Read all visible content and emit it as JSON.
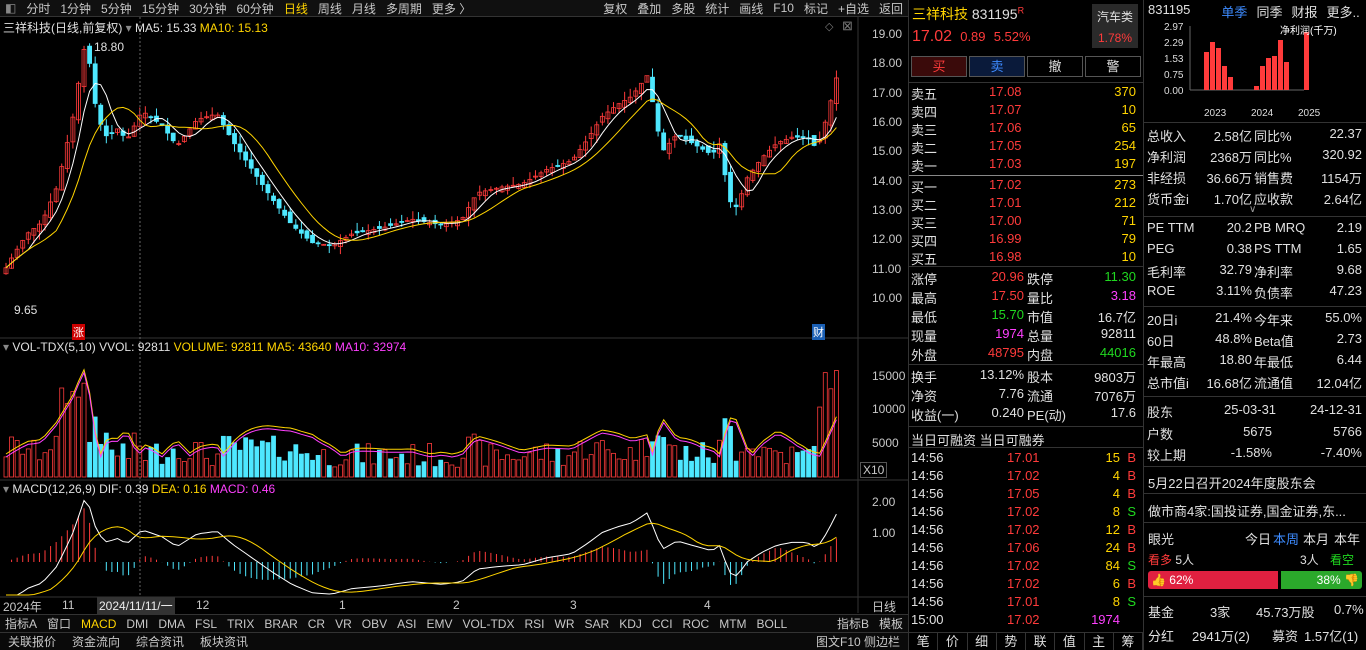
{
  "toolbar": {
    "left": [
      "分时",
      "1分钟",
      "5分钟",
      "15分钟",
      "30分钟",
      "60分钟",
      "日线",
      "周线",
      "月线",
      "多周期",
      "更多 〉"
    ],
    "right": [
      "复权",
      "叠加",
      "多股",
      "统计",
      "画线",
      "F10",
      "标记",
      "+自选",
      "返回"
    ]
  },
  "chart": {
    "title": "三祥科技(日线,前复权)",
    "ma5": "MA5: 15.33",
    "ma10": "MA10: 15.13",
    "high_label": "18.80",
    "low_label": "9.65",
    "zhang": "涨",
    "cai": "财",
    "yticks": [
      "19.00",
      "18.00",
      "17.00",
      "16.00",
      "15.00",
      "14.00",
      "13.00",
      "12.00",
      "11.00",
      "10.00"
    ]
  },
  "vol": {
    "title": "VOL-TDX(5,10)",
    "vvol": "VVOL: 92811",
    "volume": "VOLUME: 92811",
    "ma5": "MA5: 43640",
    "ma10": "MA10: 32974",
    "yticks": [
      "15000",
      "10000",
      "5000"
    ],
    "unit": "X10"
  },
  "macd": {
    "title": "MACD(12,26,9)",
    "dif": "DIF: 0.39",
    "dea": "DEA: 0.16",
    "macd": "MACD: 0.46",
    "yticks": [
      "2.00",
      "1.00"
    ]
  },
  "xaxis": {
    "labels": [
      "2024年",
      "11",
      "2024/11/11/一",
      "12",
      "1",
      "2",
      "3",
      "4"
    ],
    "period": "日线"
  },
  "indicators": [
    "指标A",
    "窗口",
    "MACD",
    "DMI",
    "DMA",
    "FSL",
    "TRIX",
    "BRAR",
    "CR",
    "VR",
    "OBV",
    "ASI",
    "EMV",
    "VOL-TDX",
    "RSI",
    "WR",
    "SAR",
    "KDJ",
    "CCI",
    "ROC",
    "MTM",
    "BOLL"
  ],
  "ind_right": [
    "指标B",
    "模板"
  ],
  "bottom": [
    "关联报价",
    "资金流向",
    "综合资讯",
    "板块资讯"
  ],
  "bottom_right": "图文F10 侧边栏",
  "quote": {
    "name": "三祥科技",
    "code": "831195",
    "r": "R",
    "price": "17.02",
    "change": "0.89",
    "pct": "5.52%",
    "sector": "汽车类",
    "sector_pct": "1.78%"
  },
  "actions": [
    "买",
    "卖",
    "撤",
    "警"
  ],
  "asks": [
    [
      "卖五",
      "17.08",
      "370"
    ],
    [
      "卖四",
      "17.07",
      "10"
    ],
    [
      "卖三",
      "17.06",
      "65"
    ],
    [
      "卖二",
      "17.05",
      "254"
    ],
    [
      "卖一",
      "17.03",
      "197"
    ]
  ],
  "bids": [
    [
      "买一",
      "17.02",
      "273"
    ],
    [
      "买二",
      "17.01",
      "212"
    ],
    [
      "买三",
      "17.00",
      "71"
    ],
    [
      "买四",
      "16.99",
      "79"
    ],
    [
      "买五",
      "16.98",
      "10"
    ]
  ],
  "stats": [
    [
      "涨停",
      "20.96",
      "跌停",
      "11.30"
    ],
    [
      "最高",
      "17.50",
      "量比",
      "3.18"
    ],
    [
      "最低",
      "15.70",
      "市值",
      "16.7亿"
    ],
    [
      "现量",
      "1974",
      "总量",
      "92811"
    ],
    [
      "外盘",
      "48795",
      "内盘",
      "44016"
    ]
  ],
  "stats2": [
    [
      "换手",
      "13.12%",
      "股本",
      "9803万"
    ],
    [
      "净资",
      "7.76",
      "流通",
      "7076万"
    ],
    [
      "收益(一)",
      "0.240",
      "PE(动)",
      "17.6"
    ]
  ],
  "margin": "当日可融资 当日可融券",
  "ticks": [
    [
      "14:56",
      "17.01",
      "15",
      "B"
    ],
    [
      "14:56",
      "17.02",
      "4",
      "B"
    ],
    [
      "14:56",
      "17.05",
      "4",
      "B"
    ],
    [
      "14:56",
      "17.02",
      "8",
      "S"
    ],
    [
      "14:56",
      "17.02",
      "12",
      "B"
    ],
    [
      "14:56",
      "17.06",
      "24",
      "B"
    ],
    [
      "14:56",
      "17.02",
      "84",
      "S"
    ],
    [
      "14:56",
      "17.02",
      "6",
      "B"
    ],
    [
      "14:56",
      "17.01",
      "8",
      "S"
    ],
    [
      "15:00",
      "17.02",
      "1974",
      ""
    ]
  ],
  "mid_tabs": [
    "笔",
    "价",
    "细",
    "势",
    "联",
    "值",
    "主",
    "筹"
  ],
  "fin": {
    "code": "831195",
    "tabs": [
      "单季",
      "同季",
      "财报",
      "更多.."
    ],
    "chart_label": "净利润(千万)",
    "yticks": [
      "2.97",
      "2.29",
      "1.53",
      "0.75",
      "0.00"
    ],
    "years": [
      "2023",
      "2024",
      "2025"
    ],
    "rows": [
      [
        "总收入",
        "2.58亿",
        "同比%",
        "22.37"
      ],
      [
        "净利润",
        "2368万",
        "同比%",
        "320.92"
      ],
      [
        "非经损",
        "36.66万",
        "销售费",
        "1154万"
      ],
      [
        "货币金i",
        "1.70亿",
        "应收款",
        "2.64亿"
      ]
    ],
    "rows2": [
      [
        "PE TTM",
        "20.2",
        "PB MRQ",
        "2.19"
      ],
      [
        "PEG",
        "0.38",
        "PS TTM",
        "1.65"
      ],
      [
        "毛利率",
        "32.79",
        "净利率",
        "9.68"
      ],
      [
        "ROE",
        "3.11%",
        "负债率",
        "47.23"
      ]
    ],
    "rows3": [
      [
        "20日i",
        "21.4%",
        "今年来",
        "55.0%"
      ],
      [
        "60日",
        "48.8%",
        "Beta值",
        "2.73"
      ],
      [
        "年最高",
        "18.80",
        "年最低",
        "6.44"
      ],
      [
        "总市值i",
        "16.68亿",
        "流通值",
        "12.04亿"
      ]
    ],
    "holders": {
      "label": "股东",
      "d1": "25-03-31",
      "d2": "24-12-31",
      "rows": [
        [
          "户数",
          "5675",
          "5766"
        ],
        [
          "较上期",
          "-1.58%",
          "-7.40%"
        ]
      ]
    },
    "news1": "5月22日召开2024年度股东会",
    "news2": "做市商4家:国投证券,国金证券,东...",
    "eye": {
      "label": "眼光",
      "tabs": [
        "今日",
        "本周",
        "本月",
        "本年"
      ],
      "bull": "看多",
      "bull_n": "5人",
      "bear_n": "3人",
      "bear": "看空",
      "bull_pct": "62%",
      "bear_pct": "38%"
    },
    "fund": [
      "基金",
      "3家",
      "45.73万股",
      "0.7%"
    ],
    "div": [
      "分红",
      "2941万(2)",
      "募资",
      "1.57亿(1)"
    ]
  },
  "chart_data": {
    "type": "candlestick",
    "title": "三祥科技(日线,前复权)",
    "ylim": [
      9.5,
      19.3
    ],
    "high": 18.8,
    "low": 9.65,
    "ma5": 15.33,
    "ma10": 15.13,
    "last_close": 17.02
  }
}
